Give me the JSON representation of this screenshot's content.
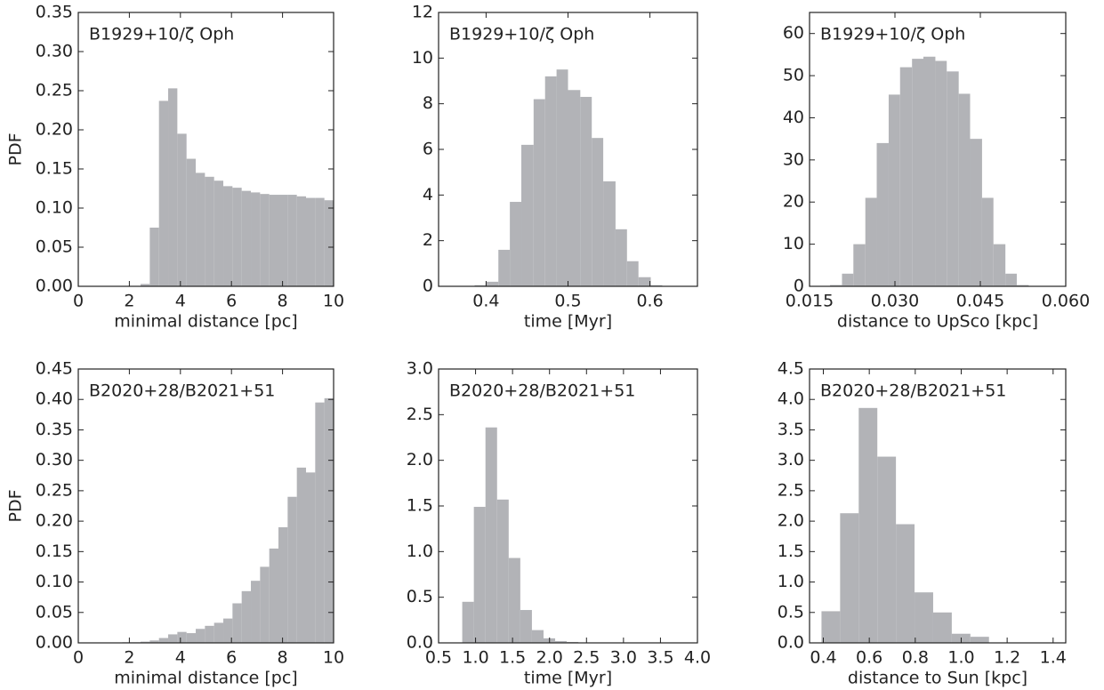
{
  "chart_data": [
    {
      "type": "histogram",
      "annotation": "B1929+10/ζ Oph",
      "xlabel": "minimal distance [pc]",
      "ylabel": "PDF",
      "color": "#b2b3b7",
      "bins": [
        2.44,
        2.8,
        3.16,
        3.52,
        3.88,
        4.24,
        4.6,
        4.96,
        5.32,
        5.68,
        6.04,
        6.4,
        6.76,
        7.12,
        7.48,
        7.84,
        8.2,
        8.56,
        8.92,
        9.28,
        9.64,
        10.0
      ],
      "values": [
        0.003,
        0.075,
        0.237,
        0.253,
        0.195,
        0.163,
        0.145,
        0.14,
        0.135,
        0.128,
        0.126,
        0.122,
        0.12,
        0.118,
        0.117,
        0.117,
        0.117,
        0.115,
        0.113,
        0.113,
        0.11
      ],
      "xlim": [
        0,
        10
      ],
      "ylim": [
        0,
        0.35
      ],
      "xticks": [
        0,
        2,
        4,
        6,
        8,
        10
      ],
      "yticks": [
        {
          "value": 0,
          "label": "0.00"
        },
        0.05,
        {
          "value": 0.1,
          "label": "0.10"
        },
        0.15,
        {
          "value": 0.2,
          "label": "0.20"
        },
        0.25,
        {
          "value": 0.3,
          "label": "0.30"
        },
        0.35
      ]
    },
    {
      "type": "histogram",
      "annotation": "B1929+10/ζ Oph",
      "xlabel": "time [Myr]",
      "color": "#b2b3b7",
      "bins": [
        0.386,
        0.4,
        0.415,
        0.429,
        0.443,
        0.458,
        0.472,
        0.486,
        0.5,
        0.515,
        0.529,
        0.543,
        0.558,
        0.572,
        0.586,
        0.601,
        0.615
      ],
      "values": [
        0.05,
        0.2,
        1.6,
        3.7,
        6.2,
        8.2,
        9.2,
        9.5,
        8.6,
        8.3,
        6.5,
        4.6,
        2.5,
        1.1,
        0.4,
        0.05
      ],
      "xlim": [
        0.342,
        0.658
      ],
      "ylim": [
        0,
        12
      ],
      "xticks": [
        0.4,
        0.5,
        0.6
      ],
      "yticks": [
        0,
        2,
        4,
        6,
        8,
        10,
        12
      ]
    },
    {
      "type": "histogram",
      "annotation": "B1929+10/ζ Oph",
      "xlabel": "distance to UpSco [kpc]",
      "color": "#b2b3b7",
      "bins": [
        0.0186,
        0.0207,
        0.0227,
        0.0248,
        0.0268,
        0.0289,
        0.0309,
        0.033,
        0.035,
        0.0371,
        0.0391,
        0.0412,
        0.0432,
        0.0453,
        0.0473,
        0.0494,
        0.0514,
        0.0535
      ],
      "values": [
        0.3,
        3,
        10,
        21,
        34,
        45.5,
        52,
        54,
        54.5,
        53.5,
        51,
        45.7,
        35,
        21,
        10,
        3,
        0.3
      ],
      "xlim": [
        0.015,
        0.06
      ],
      "ylim": [
        0,
        65
      ],
      "xticks": [
        0.015,
        {
          "value": 0.03,
          "label": "0.030"
        },
        0.045,
        {
          "value": 0.06,
          "label": "0.060"
        }
      ],
      "yticks": [
        0,
        10,
        20,
        30,
        40,
        50,
        60
      ]
    },
    {
      "type": "histogram",
      "annotation": "B2020+28/B2021+51",
      "xlabel": "minimal distance [pc]",
      "ylabel": "PDF",
      "color": "#b2b3b7",
      "bins": [
        1.72,
        2.08,
        2.44,
        2.8,
        3.16,
        3.52,
        3.88,
        4.24,
        4.6,
        4.96,
        5.32,
        5.68,
        6.04,
        6.4,
        6.76,
        7.12,
        7.48,
        7.84,
        8.2,
        8.56,
        8.92,
        9.28,
        9.64,
        10.0
      ],
      "values": [
        0.001,
        0.001,
        0.002,
        0.004,
        0.008,
        0.014,
        0.018,
        0.016,
        0.023,
        0.028,
        0.033,
        0.04,
        0.065,
        0.085,
        0.102,
        0.125,
        0.155,
        0.19,
        0.24,
        0.288,
        0.28,
        0.395,
        0.402
      ],
      "xlim": [
        0,
        10
      ],
      "ylim": [
        0,
        0.45
      ],
      "xticks": [
        0,
        2,
        4,
        6,
        8,
        10
      ],
      "yticks": [
        {
          "value": 0,
          "label": "0.00"
        },
        0.05,
        {
          "value": 0.1,
          "label": "0.10"
        },
        0.15,
        {
          "value": 0.2,
          "label": "0.20"
        },
        0.25,
        {
          "value": 0.3,
          "label": "0.30"
        },
        0.35,
        {
          "value": 0.4,
          "label": "0.40"
        },
        0.45
      ]
    },
    {
      "type": "histogram",
      "annotation": "B2020+28/B2021+51",
      "xlabel": "time [Myr]",
      "color": "#b2b3b7",
      "bins": [
        0.82,
        0.977,
        1.134,
        1.291,
        1.448,
        1.605,
        1.762,
        1.919,
        2.076,
        2.233,
        2.39
      ],
      "values": [
        0.45,
        1.49,
        2.36,
        1.57,
        0.93,
        0.36,
        0.14,
        0.05,
        0.02,
        0.01
      ],
      "xlim": [
        0.5,
        4
      ],
      "ylim": [
        0,
        3
      ],
      "xticks": [
        0.5,
        {
          "value": 1,
          "label": "1.0"
        },
        1.5,
        {
          "value": 2,
          "label": "2.0"
        },
        2.5,
        {
          "value": 3,
          "label": "3.0"
        },
        3.5,
        {
          "value": 4,
          "label": "4.0"
        }
      ],
      "yticks": [
        {
          "value": 0,
          "label": "0.0"
        },
        0.5,
        {
          "value": 1,
          "label": "1.0"
        },
        1.5,
        {
          "value": 2,
          "label": "2.0"
        },
        2.5,
        {
          "value": 3,
          "label": "3.0"
        }
      ]
    },
    {
      "type": "histogram",
      "annotation": "B2020+28/B2021+51",
      "xlabel": "distance to Sun [kpc]",
      "color": "#b2b3b7",
      "bins": [
        0.392,
        0.473,
        0.554,
        0.635,
        0.716,
        0.797,
        0.878,
        0.959,
        1.04,
        1.121
      ],
      "values": [
        0.52,
        2.13,
        3.86,
        3.06,
        1.95,
        0.83,
        0.5,
        0.15,
        0.1
      ],
      "xlim": [
        0.34,
        1.455
      ],
      "ylim": [
        0,
        4.5
      ],
      "xticks": [
        0.4,
        0.6,
        0.8,
        {
          "value": 1,
          "label": "1.0"
        },
        1.2,
        1.4
      ],
      "yticks": [
        {
          "value": 0,
          "label": "0.0"
        },
        0.5,
        {
          "value": 1,
          "label": "1.0"
        },
        1.5,
        {
          "value": 2,
          "label": "2.0"
        },
        2.5,
        {
          "value": 3,
          "label": "3.0"
        },
        3.5,
        {
          "value": 4,
          "label": "4.0"
        },
        4.5
      ]
    }
  ]
}
